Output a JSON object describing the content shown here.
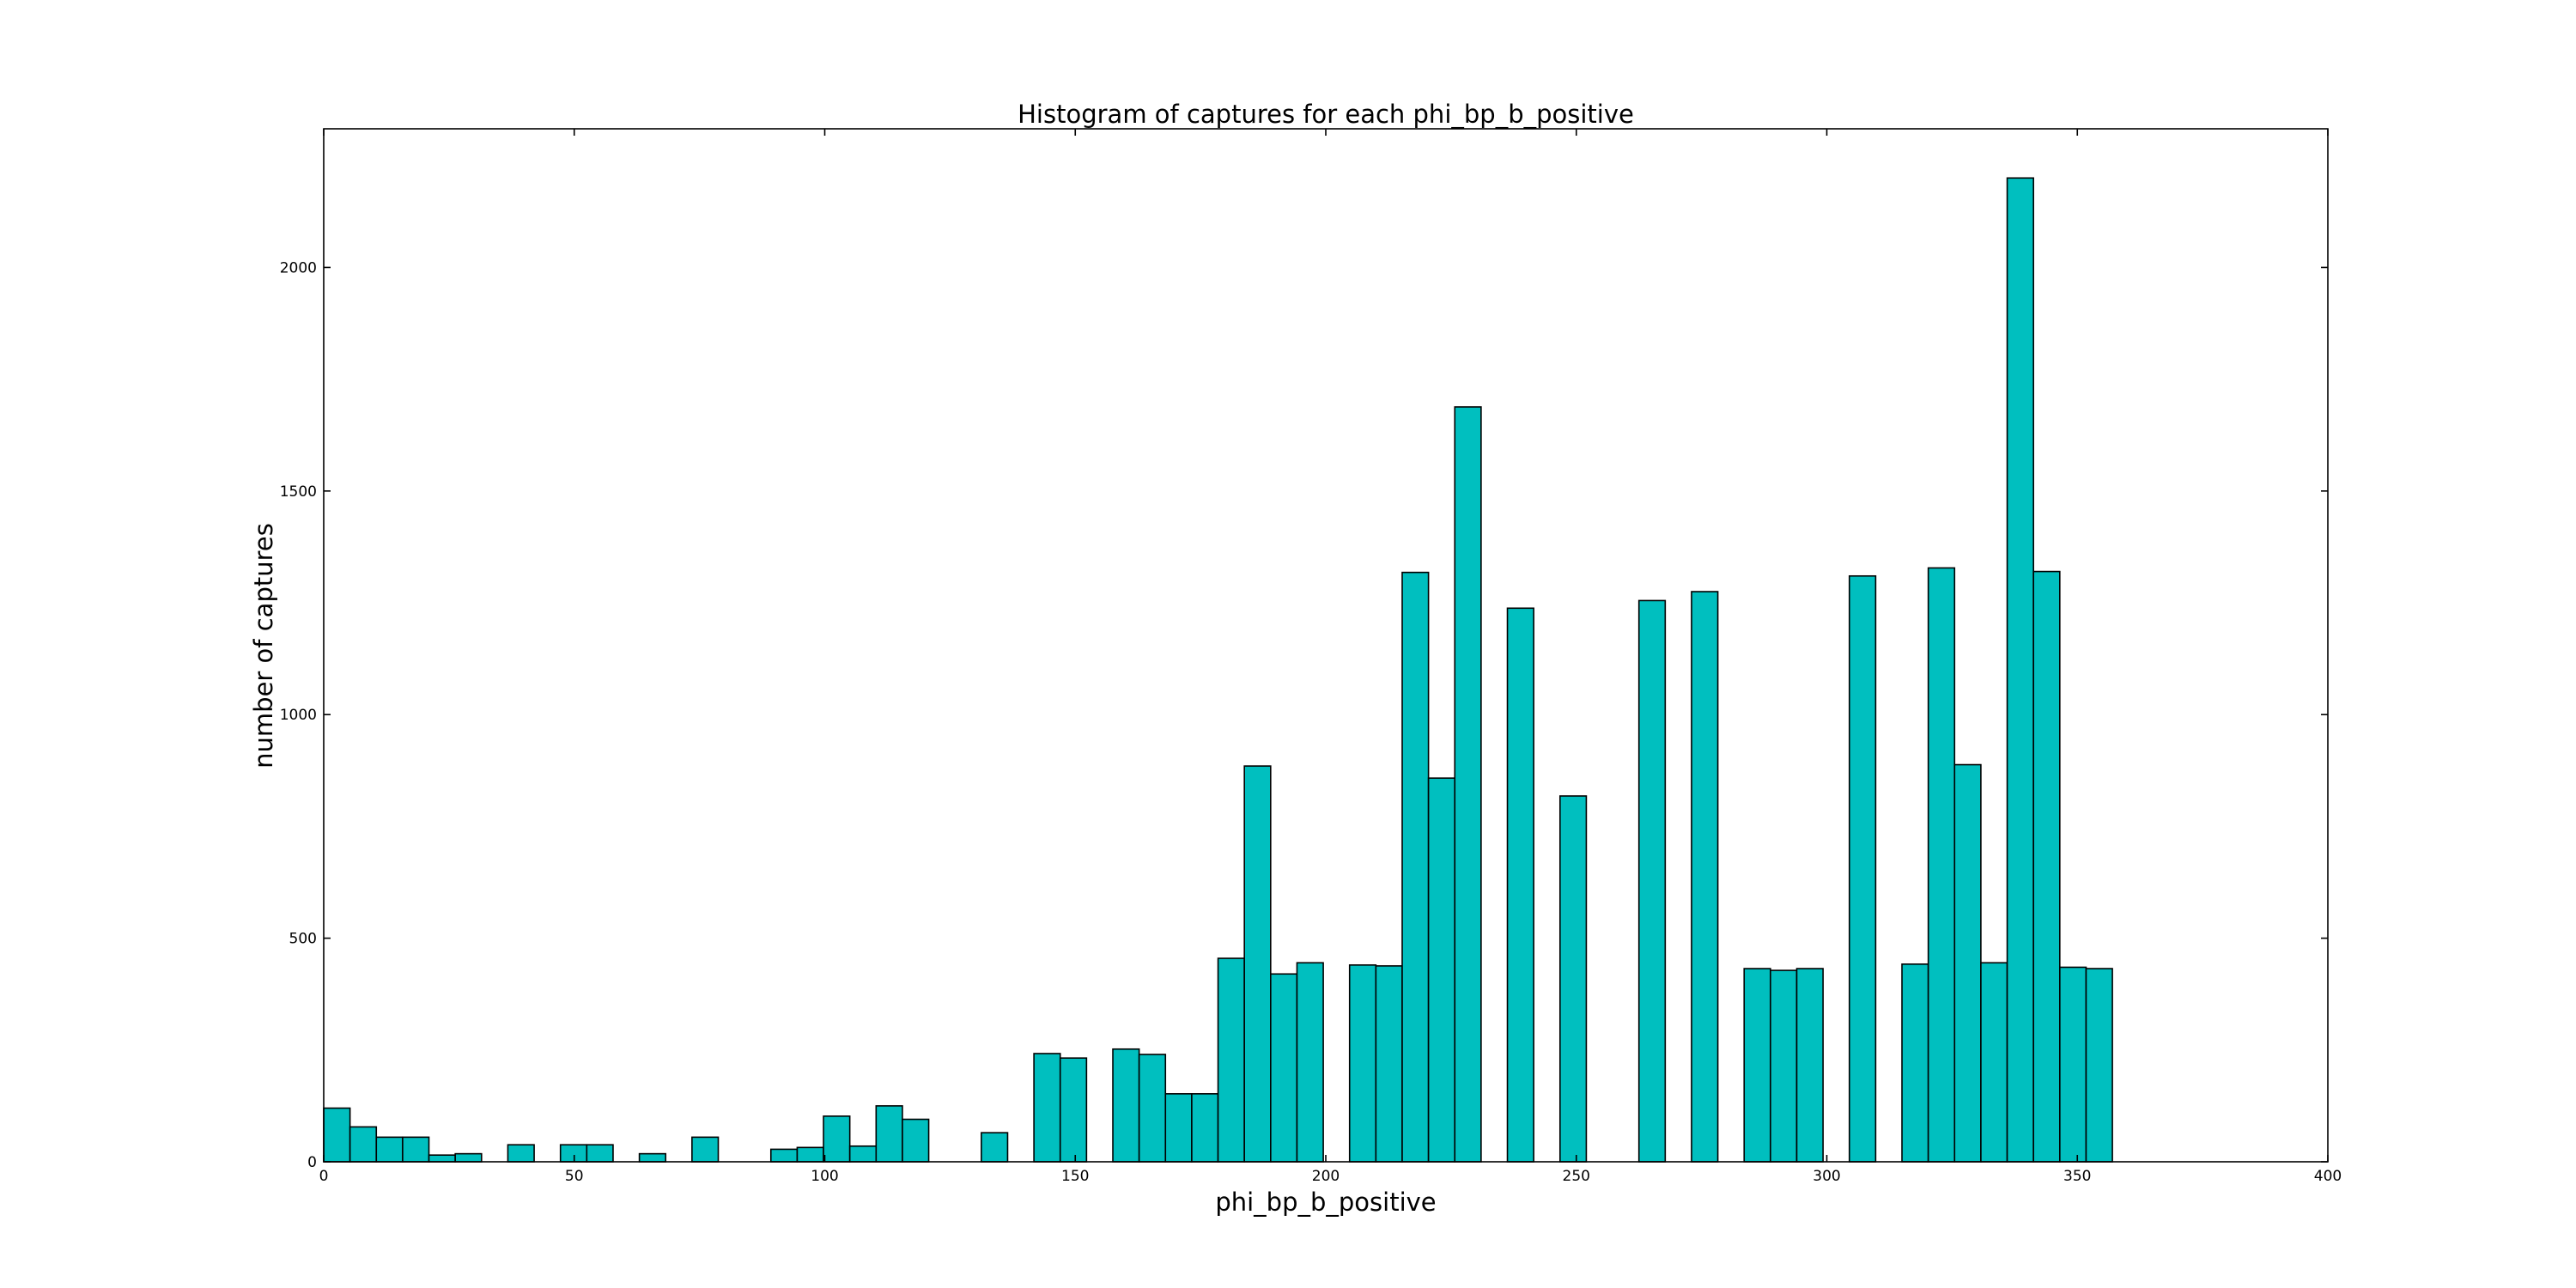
{
  "chart_data": {
    "type": "bar",
    "title": "Histogram of captures for each phi_bp_b_positive",
    "xlabel": "phi_bp_b_positive",
    "ylabel": "number of captures",
    "xlim": [
      0,
      400
    ],
    "ylim": [
      0,
      2310
    ],
    "bin_width": 5.25,
    "xticks": [
      0,
      50,
      100,
      150,
      200,
      250,
      300,
      350,
      400
    ],
    "yticks": [
      0,
      500,
      1000,
      1500,
      2000
    ],
    "color": "#00bfbf",
    "grid": false,
    "bars": [
      {
        "x": 0,
        "y": 120
      },
      {
        "x": 5.25,
        "y": 78
      },
      {
        "x": 10.5,
        "y": 55
      },
      {
        "x": 15.75,
        "y": 55
      },
      {
        "x": 21,
        "y": 15
      },
      {
        "x": 26.25,
        "y": 18
      },
      {
        "x": 36.75,
        "y": 38
      },
      {
        "x": 47.25,
        "y": 38
      },
      {
        "x": 52.5,
        "y": 38
      },
      {
        "x": 63,
        "y": 18
      },
      {
        "x": 73.5,
        "y": 55
      },
      {
        "x": 89.25,
        "y": 28
      },
      {
        "x": 94.5,
        "y": 32
      },
      {
        "x": 99.75,
        "y": 102
      },
      {
        "x": 105,
        "y": 35
      },
      {
        "x": 110.25,
        "y": 125
      },
      {
        "x": 115.5,
        "y": 95
      },
      {
        "x": 131.25,
        "y": 65
      },
      {
        "x": 141.75,
        "y": 242
      },
      {
        "x": 147,
        "y": 232
      },
      {
        "x": 157.5,
        "y": 252
      },
      {
        "x": 162.75,
        "y": 240
      },
      {
        "x": 168,
        "y": 152
      },
      {
        "x": 173.25,
        "y": 152
      },
      {
        "x": 178.5,
        "y": 455
      },
      {
        "x": 183.75,
        "y": 885
      },
      {
        "x": 189,
        "y": 420
      },
      {
        "x": 194.25,
        "y": 445
      },
      {
        "x": 204.75,
        "y": 440
      },
      {
        "x": 210,
        "y": 438
      },
      {
        "x": 215.25,
        "y": 1318
      },
      {
        "x": 220.5,
        "y": 858
      },
      {
        "x": 225.75,
        "y": 1688
      },
      {
        "x": 236.25,
        "y": 1238
      },
      {
        "x": 246.75,
        "y": 818
      },
      {
        "x": 262.5,
        "y": 1255
      },
      {
        "x": 273,
        "y": 1275
      },
      {
        "x": 283.5,
        "y": 432
      },
      {
        "x": 288.75,
        "y": 428
      },
      {
        "x": 294,
        "y": 432
      },
      {
        "x": 304.5,
        "y": 1310
      },
      {
        "x": 315,
        "y": 442
      },
      {
        "x": 320.25,
        "y": 1328
      },
      {
        "x": 325.5,
        "y": 888
      },
      {
        "x": 330.75,
        "y": 445
      },
      {
        "x": 336,
        "y": 2200
      },
      {
        "x": 341.25,
        "y": 1320
      },
      {
        "x": 346.5,
        "y": 435
      },
      {
        "x": 351.75,
        "y": 432
      }
    ]
  }
}
